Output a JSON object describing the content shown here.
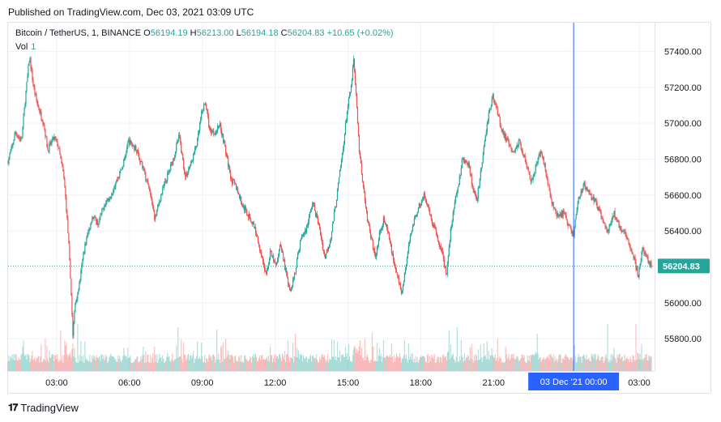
{
  "published": "Published on TradingView.com, Dec 03, 2021 03:09 UTC",
  "legend": {
    "symbol": "Bitcoin / TetherUS, 1, BINANCE",
    "o_label": "O",
    "o": "56194.19",
    "h_label": "H",
    "h": "56213.00",
    "l_label": "L",
    "l": "56194.18",
    "c_label": "C",
    "c": "56204.83",
    "change": "+10.65 (+0.02%)"
  },
  "volume": {
    "label": "Vol",
    "value": "1"
  },
  "footer": {
    "brand": "TradingView"
  },
  "colors": {
    "up": "#26a69a",
    "down": "#ef5350",
    "crosshair": "#2962ff",
    "price_tag": "#26a69a"
  },
  "chart_data": {
    "type": "candlestick",
    "ylim": [
      55620,
      57560
    ],
    "y_ticks": [
      {
        "value": 57400,
        "label": "57400.00"
      },
      {
        "value": 57200,
        "label": "57200.00"
      },
      {
        "value": 57000,
        "label": "57000.00"
      },
      {
        "value": 56800,
        "label": "56800.00"
      },
      {
        "value": 56600,
        "label": "56600.00"
      },
      {
        "value": 56400,
        "label": "56400.00"
      },
      {
        "value": 56000,
        "label": "56000.00"
      },
      {
        "value": 55800,
        "label": "55800.00"
      }
    ],
    "x_ticks": [
      {
        "value": 120,
        "label": "03:00"
      },
      {
        "value": 300,
        "label": "06:00"
      },
      {
        "value": 480,
        "label": "09:00"
      },
      {
        "value": 660,
        "label": "12:00"
      },
      {
        "value": 840,
        "label": "15:00"
      },
      {
        "value": 1020,
        "label": "18:00"
      },
      {
        "value": 1200,
        "label": "21:00"
      },
      {
        "value": 1560,
        "label": "03:00"
      }
    ],
    "x_range": [
      0,
      1598
    ],
    "last_price": 56204.83,
    "last_price_label": "56204.83",
    "crosshair": {
      "x": 1398,
      "label": "03 Dec '21   00:00"
    },
    "price_path": [
      [
        0,
        56780
      ],
      [
        10,
        56850
      ],
      [
        20,
        56950
      ],
      [
        35,
        56900
      ],
      [
        45,
        57150
      ],
      [
        55,
        57370
      ],
      [
        65,
        57200
      ],
      [
        75,
        57100
      ],
      [
        90,
        57000
      ],
      [
        100,
        56850
      ],
      [
        115,
        56920
      ],
      [
        125,
        56880
      ],
      [
        140,
        56700
      ],
      [
        150,
        56400
      ],
      [
        158,
        56050
      ],
      [
        162,
        55820
      ],
      [
        168,
        56000
      ],
      [
        178,
        56100
      ],
      [
        190,
        56300
      ],
      [
        210,
        56480
      ],
      [
        225,
        56440
      ],
      [
        240,
        56550
      ],
      [
        255,
        56600
      ],
      [
        270,
        56680
      ],
      [
        285,
        56760
      ],
      [
        300,
        56900
      ],
      [
        320,
        56850
      ],
      [
        335,
        56750
      ],
      [
        350,
        56640
      ],
      [
        365,
        56470
      ],
      [
        380,
        56600
      ],
      [
        395,
        56700
      ],
      [
        410,
        56800
      ],
      [
        425,
        56930
      ],
      [
        440,
        56700
      ],
      [
        455,
        56780
      ],
      [
        470,
        56900
      ],
      [
        480,
        57050
      ],
      [
        490,
        57120
      ],
      [
        500,
        56960
      ],
      [
        515,
        56950
      ],
      [
        525,
        57000
      ],
      [
        535,
        56900
      ],
      [
        545,
        56780
      ],
      [
        555,
        56680
      ],
      [
        565,
        56650
      ],
      [
        580,
        56550
      ],
      [
        595,
        56490
      ],
      [
        610,
        56430
      ],
      [
        625,
        56300
      ],
      [
        640,
        56150
      ],
      [
        650,
        56280
      ],
      [
        665,
        56200
      ],
      [
        675,
        56340
      ],
      [
        690,
        56150
      ],
      [
        700,
        56070
      ],
      [
        712,
        56180
      ],
      [
        725,
        56350
      ],
      [
        740,
        56420
      ],
      [
        755,
        56560
      ],
      [
        770,
        56430
      ],
      [
        785,
        56250
      ],
      [
        800,
        56370
      ],
      [
        812,
        56550
      ],
      [
        820,
        56690
      ],
      [
        830,
        56860
      ],
      [
        840,
        57070
      ],
      [
        850,
        57200
      ],
      [
        856,
        57350
      ],
      [
        862,
        57150
      ],
      [
        870,
        56850
      ],
      [
        880,
        56650
      ],
      [
        890,
        56470
      ],
      [
        900,
        56350
      ],
      [
        910,
        56250
      ],
      [
        920,
        56380
      ],
      [
        930,
        56470
      ],
      [
        945,
        56350
      ],
      [
        955,
        56230
      ],
      [
        965,
        56140
      ],
      [
        975,
        56050
      ],
      [
        990,
        56280
      ],
      [
        1000,
        56420
      ],
      [
        1015,
        56520
      ],
      [
        1030,
        56600
      ],
      [
        1045,
        56480
      ],
      [
        1060,
        56380
      ],
      [
        1075,
        56280
      ],
      [
        1085,
        56150
      ],
      [
        1095,
        56380
      ],
      [
        1105,
        56550
      ],
      [
        1115,
        56650
      ],
      [
        1125,
        56800
      ],
      [
        1140,
        56770
      ],
      [
        1150,
        56650
      ],
      [
        1160,
        56560
      ],
      [
        1170,
        56720
      ],
      [
        1180,
        56900
      ],
      [
        1190,
        57050
      ],
      [
        1200,
        57150
      ],
      [
        1210,
        57080
      ],
      [
        1220,
        56980
      ],
      [
        1235,
        56900
      ],
      [
        1250,
        56830
      ],
      [
        1265,
        56900
      ],
      [
        1280,
        56800
      ],
      [
        1295,
        56680
      ],
      [
        1310,
        56780
      ],
      [
        1320,
        56850
      ],
      [
        1330,
        56740
      ],
      [
        1345,
        56560
      ],
      [
        1360,
        56480
      ],
      [
        1375,
        56500
      ],
      [
        1390,
        56420
      ],
      [
        1400,
        56380
      ],
      [
        1410,
        56560
      ],
      [
        1425,
        56660
      ],
      [
        1440,
        56600
      ],
      [
        1455,
        56560
      ],
      [
        1470,
        56470
      ],
      [
        1485,
        56390
      ],
      [
        1500,
        56500
      ],
      [
        1515,
        56420
      ],
      [
        1530,
        56380
      ],
      [
        1545,
        56280
      ],
      [
        1560,
        56150
      ],
      [
        1570,
        56300
      ],
      [
        1580,
        56250
      ],
      [
        1590,
        56205
      ]
    ]
  }
}
